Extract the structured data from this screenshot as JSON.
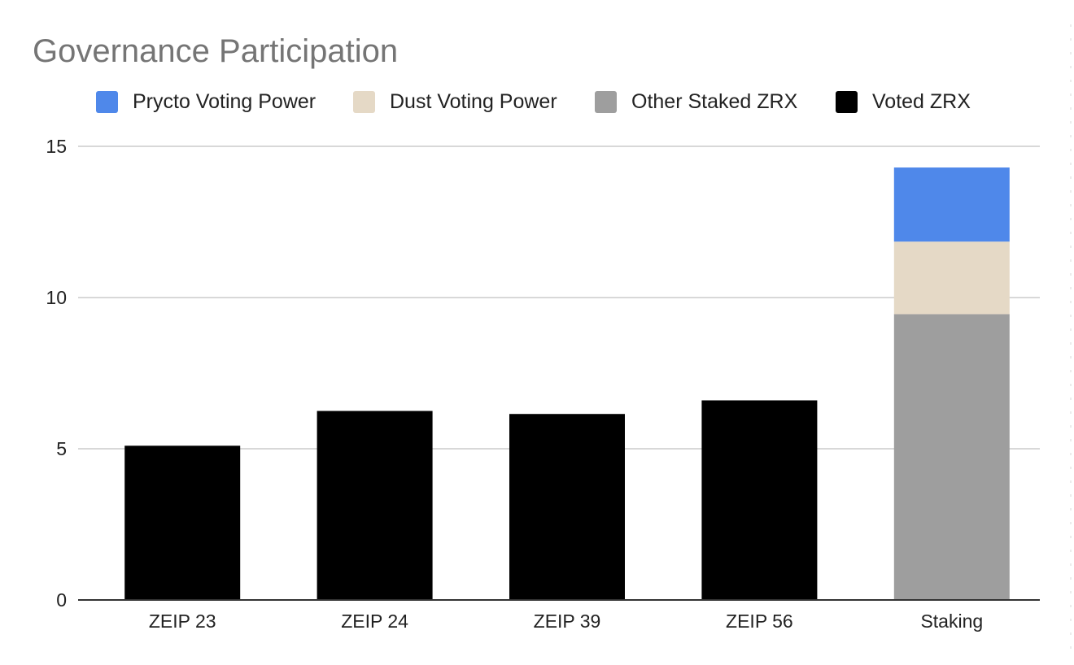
{
  "chart_data": {
    "type": "bar",
    "stacked": true,
    "title": "Governance Participation",
    "xlabel": "",
    "ylabel": "",
    "categories": [
      "ZEIP 23",
      "ZEIP 24",
      "ZEIP 39",
      "ZEIP 56",
      "Staking"
    ],
    "series": [
      {
        "name": "Voted ZRX",
        "color": "#000000",
        "values": [
          5.1,
          6.25,
          6.15,
          6.6,
          0
        ]
      },
      {
        "name": "Other Staked ZRX",
        "color": "#9e9e9e",
        "values": [
          0,
          0,
          0,
          0,
          9.45
        ]
      },
      {
        "name": "Dust Voting Power",
        "color": "#e5d9c6",
        "values": [
          0,
          0,
          0,
          0,
          2.4
        ]
      },
      {
        "name": "Prycto Voting Power",
        "color": "#4f88ea",
        "values": [
          0,
          0,
          0,
          0,
          2.45
        ]
      }
    ],
    "legend_order": [
      "Prycto Voting Power",
      "Dust Voting Power",
      "Other Staked ZRX",
      "Voted ZRX"
    ],
    "legend_position": "top",
    "ylim": [
      0,
      15
    ],
    "yticks": [
      "0",
      "5",
      "10",
      "15"
    ],
    "grid": true
  }
}
